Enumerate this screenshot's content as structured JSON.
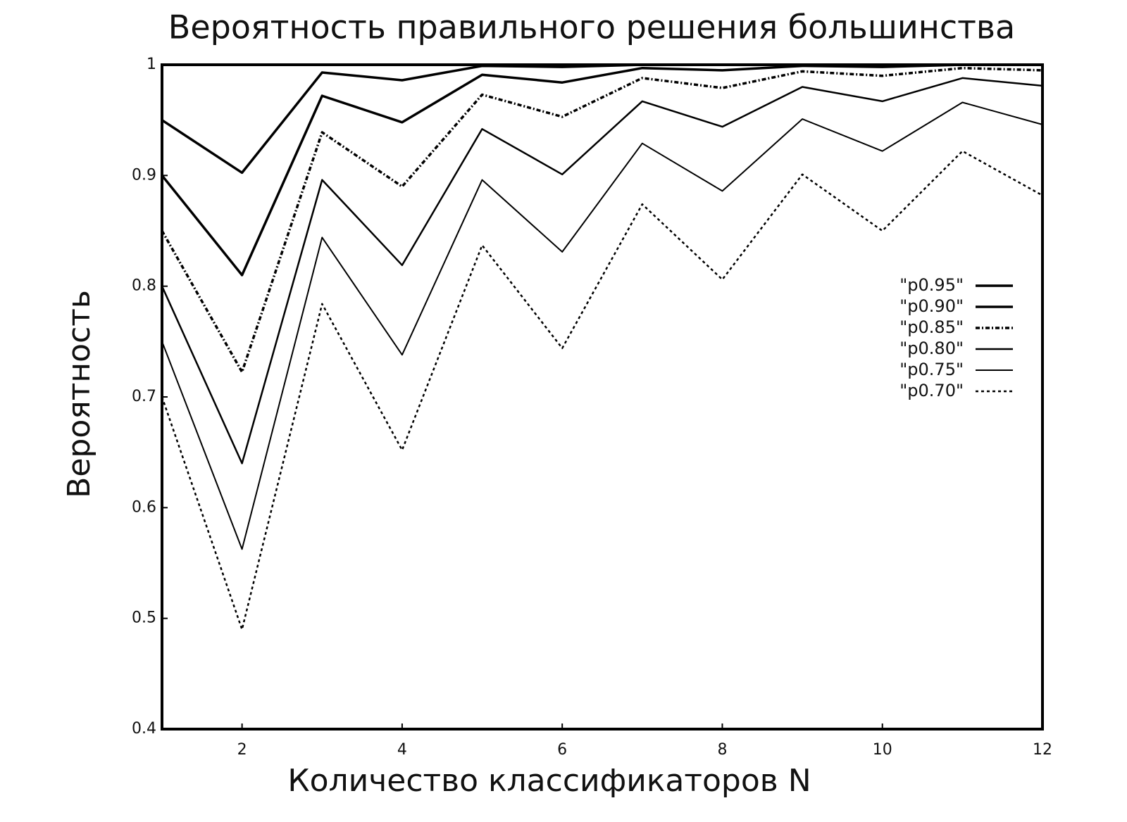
{
  "chart_data": {
    "type": "line",
    "title": "Вероятность правильного решения большинства",
    "x_label": "Количество классификаторов N",
    "y_label": "Вероятность",
    "x": [
      1,
      2,
      3,
      4,
      5,
      6,
      7,
      8,
      9,
      10,
      11,
      12
    ],
    "series": [
      {
        "name": "\"p0.95\"",
        "color": "#000000",
        "values": [
          0.95,
          0.9025,
          0.993,
          0.986,
          0.999,
          0.998,
          1.0,
          1.0,
          1.0,
          1.0,
          1.0,
          1.0
        ]
      },
      {
        "name": "\"p0.90\"",
        "color": "#000000",
        "values": [
          0.9,
          0.81,
          0.972,
          0.948,
          0.991,
          0.984,
          0.997,
          0.995,
          0.999,
          0.998,
          1.0,
          1.0
        ]
      },
      {
        "name": "\"p0.85\"",
        "color": "#000000",
        "values": [
          0.85,
          0.7225,
          0.939,
          0.89,
          0.973,
          0.953,
          0.988,
          0.979,
          0.994,
          0.99,
          0.997,
          0.995
        ]
      },
      {
        "name": "\"p0.80\"",
        "color": "#000000",
        "values": [
          0.8,
          0.64,
          0.896,
          0.819,
          0.942,
          0.901,
          0.967,
          0.944,
          0.98,
          0.967,
          0.988,
          0.981
        ]
      },
      {
        "name": "\"p0.75\"",
        "color": "#000000",
        "values": [
          0.75,
          0.5625,
          0.844,
          0.738,
          0.896,
          0.831,
          0.929,
          0.886,
          0.951,
          0.922,
          0.966,
          0.946
        ]
      },
      {
        "name": "\"p0.70\"",
        "color": "#000000",
        "values": [
          0.7,
          0.49,
          0.784,
          0.652,
          0.837,
          0.744,
          0.874,
          0.806,
          0.901,
          0.85,
          0.922,
          0.882
        ]
      }
    ],
    "xlim": [
      1,
      12
    ],
    "xticks": [
      2,
      4,
      6,
      8,
      10,
      12
    ],
    "ylim": [
      0.4,
      1
    ],
    "yticks": [
      0.4,
      0.5,
      0.6,
      0.7,
      0.8,
      0.9,
      1
    ],
    "grid": false,
    "legend": "right"
  }
}
